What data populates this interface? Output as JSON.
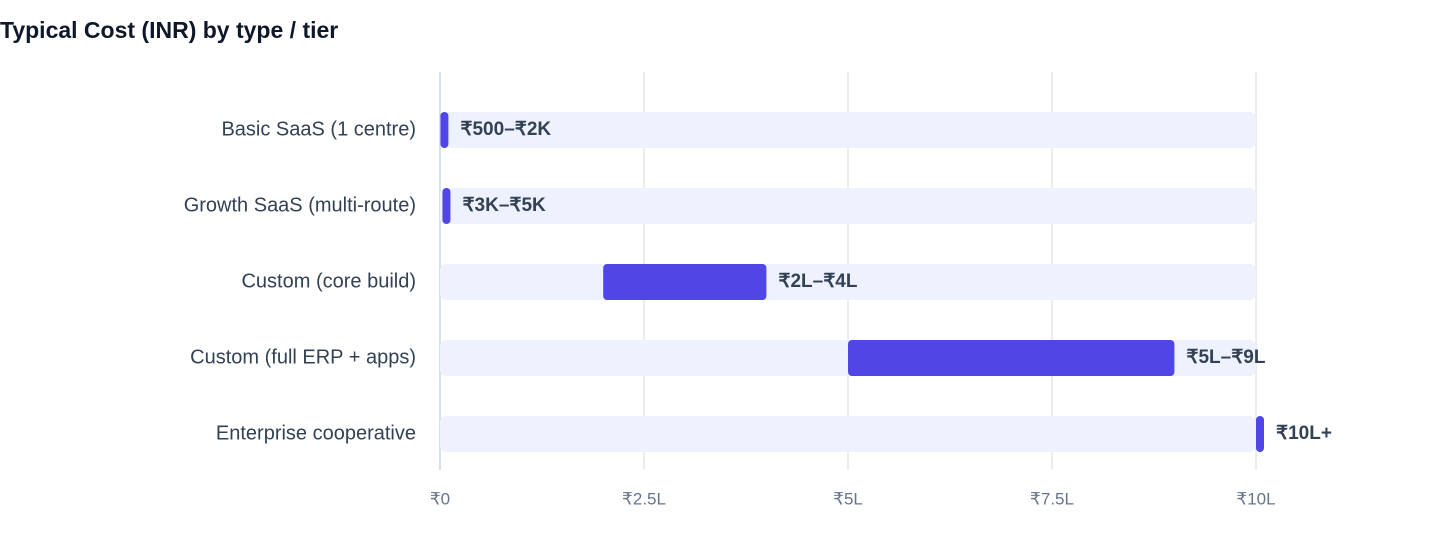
{
  "chart_data": {
    "type": "range-bar",
    "title": "Typical Cost (INR) by type / tier",
    "categories": [
      "Basic SaaS (1 centre)",
      "Growth SaaS (multi-route)",
      "Custom (core build)",
      "Custom (full ERP + apps)",
      "Enterprise cooperative"
    ],
    "low": [
      500,
      3000,
      200000,
      500000,
      1000000
    ],
    "high": [
      2000,
      5000,
      400000,
      900000,
      1000000
    ],
    "value_labels": [
      "₹500–₹2K",
      "₹3K–₹5K",
      "₹2L–₹4L",
      "₹5L–₹9L",
      "₹10L+"
    ],
    "color": "#4f46e5",
    "track_color": "#eef2ff",
    "xlim": [
      0,
      1000000
    ],
    "xticks": [
      {
        "value": 0,
        "label": "₹0"
      },
      {
        "value": 250000,
        "label": "₹2.5L"
      },
      {
        "value": 500000,
        "label": "₹5L"
      },
      {
        "value": 750000,
        "label": "₹7.5L"
      },
      {
        "value": 1000000,
        "label": "₹10L"
      }
    ],
    "grid": true
  }
}
